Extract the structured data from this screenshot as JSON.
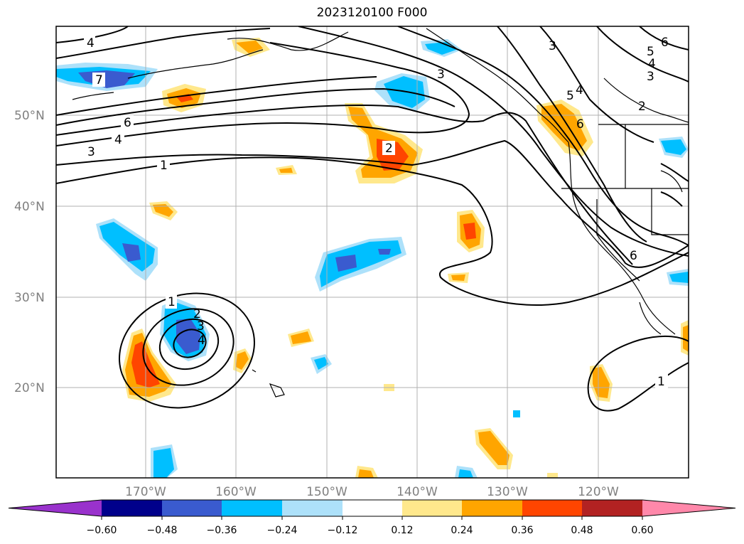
{
  "title": "2023120100 F000",
  "lat_labels": [
    "50°N",
    "40°N",
    "30°N",
    "20°N"
  ],
  "lon_labels": [
    "170°W",
    "160°W",
    "150°W",
    "140°W",
    "130°W",
    "120°W"
  ],
  "colorbar": {
    "ticks": [
      "−0.60",
      "−0.48",
      "−0.36",
      "−0.24",
      "−0.12",
      "0.12",
      "0.24",
      "0.36",
      "0.48",
      "0.60"
    ],
    "colors": [
      "#9932CC",
      "#00008B",
      "#3A5BCF",
      "#00BFFF",
      "#ADE1FA",
      "#FFFFFF",
      "#FFE88C",
      "#FFA500",
      "#FF4500",
      "#B22222",
      "#FF88AA"
    ]
  },
  "contour_labels": [
    "4",
    "7",
    "6",
    "4",
    "3",
    "1",
    "2",
    "3",
    "3",
    "5",
    "4",
    "5",
    "6",
    "4",
    "3",
    "2",
    "6",
    "6",
    "1",
    "2",
    "3",
    "4",
    "1"
  ]
}
